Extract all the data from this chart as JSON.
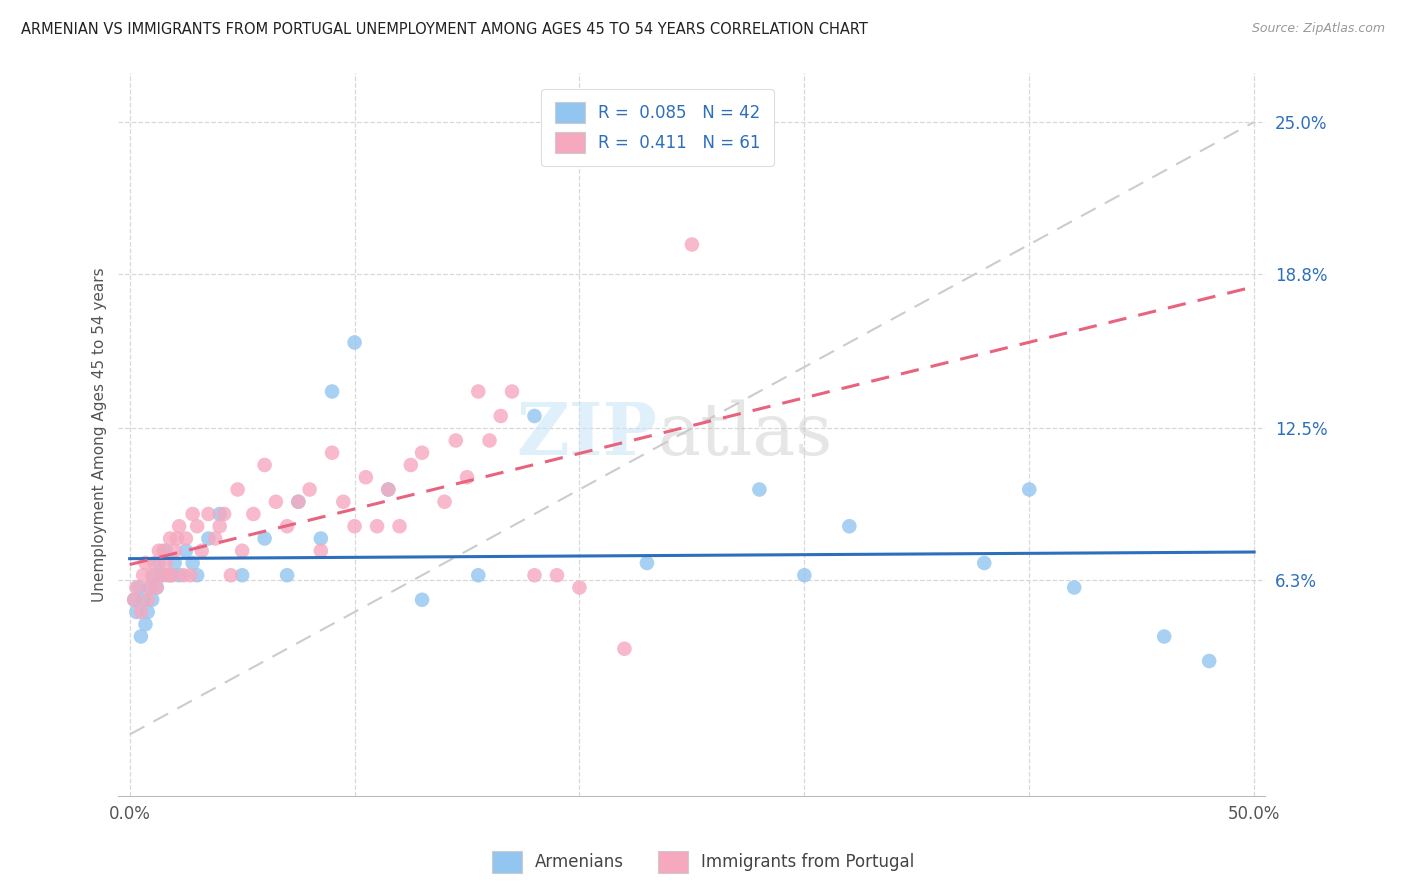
{
  "title": "ARMENIAN VS IMMIGRANTS FROM PORTUGAL UNEMPLOYMENT AMONG AGES 45 TO 54 YEARS CORRELATION CHART",
  "source": "Source: ZipAtlas.com",
  "ylabel": "Unemployment Among Ages 45 to 54 years",
  "armenian_R": 0.085,
  "armenian_N": 42,
  "portugal_R": 0.411,
  "portugal_N": 61,
  "armenian_color": "#92c5f0",
  "portugal_color": "#f5a8be",
  "armenian_line_color": "#2e6fbd",
  "portugal_line_color": "#e8637e",
  "ref_line_color": "#cccccc",
  "background_color": "#ffffff",
  "grid_color": "#d8d8d8",
  "xlim": [
    -0.005,
    0.505
  ],
  "ylim": [
    -0.025,
    0.27
  ],
  "ytick_vals": [
    0.063,
    0.125,
    0.188,
    0.25
  ],
  "ytick_labels": [
    "6.3%",
    "12.5%",
    "18.8%",
    "25.0%"
  ],
  "arm_x": [
    0.002,
    0.003,
    0.004,
    0.005,
    0.006,
    0.007,
    0.008,
    0.009,
    0.01,
    0.011,
    0.012,
    0.013,
    0.015,
    0.016,
    0.018,
    0.02,
    0.022,
    0.025,
    0.028,
    0.03,
    0.035,
    0.04,
    0.05,
    0.06,
    0.07,
    0.075,
    0.085,
    0.09,
    0.1,
    0.115,
    0.13,
    0.155,
    0.18,
    0.23,
    0.28,
    0.3,
    0.32,
    0.38,
    0.4,
    0.42,
    0.46,
    0.48
  ],
  "arm_y": [
    0.055,
    0.05,
    0.06,
    0.04,
    0.055,
    0.045,
    0.05,
    0.06,
    0.055,
    0.065,
    0.06,
    0.07,
    0.065,
    0.075,
    0.065,
    0.07,
    0.065,
    0.075,
    0.07,
    0.065,
    0.08,
    0.09,
    0.065,
    0.08,
    0.065,
    0.095,
    0.08,
    0.14,
    0.16,
    0.1,
    0.055,
    0.065,
    0.13,
    0.07,
    0.1,
    0.065,
    0.085,
    0.07,
    0.1,
    0.06,
    0.04,
    0.03
  ],
  "port_x": [
    0.002,
    0.003,
    0.005,
    0.006,
    0.007,
    0.008,
    0.009,
    0.01,
    0.011,
    0.012,
    0.013,
    0.014,
    0.015,
    0.016,
    0.017,
    0.018,
    0.019,
    0.02,
    0.021,
    0.022,
    0.024,
    0.025,
    0.027,
    0.028,
    0.03,
    0.032,
    0.035,
    0.038,
    0.04,
    0.042,
    0.045,
    0.048,
    0.05,
    0.055,
    0.06,
    0.065,
    0.07,
    0.075,
    0.08,
    0.085,
    0.09,
    0.095,
    0.1,
    0.105,
    0.11,
    0.115,
    0.12,
    0.125,
    0.13,
    0.14,
    0.145,
    0.15,
    0.155,
    0.16,
    0.165,
    0.17,
    0.18,
    0.19,
    0.2,
    0.22,
    0.25
  ],
  "port_y": [
    0.055,
    0.06,
    0.05,
    0.065,
    0.07,
    0.055,
    0.06,
    0.065,
    0.07,
    0.06,
    0.075,
    0.065,
    0.075,
    0.07,
    0.065,
    0.08,
    0.065,
    0.075,
    0.08,
    0.085,
    0.065,
    0.08,
    0.065,
    0.09,
    0.085,
    0.075,
    0.09,
    0.08,
    0.085,
    0.09,
    0.065,
    0.1,
    0.075,
    0.09,
    0.11,
    0.095,
    0.085,
    0.095,
    0.1,
    0.075,
    0.115,
    0.095,
    0.085,
    0.105,
    0.085,
    0.1,
    0.085,
    0.11,
    0.115,
    0.095,
    0.12,
    0.105,
    0.14,
    0.12,
    0.13,
    0.14,
    0.065,
    0.065,
    0.06,
    0.035,
    0.2
  ]
}
